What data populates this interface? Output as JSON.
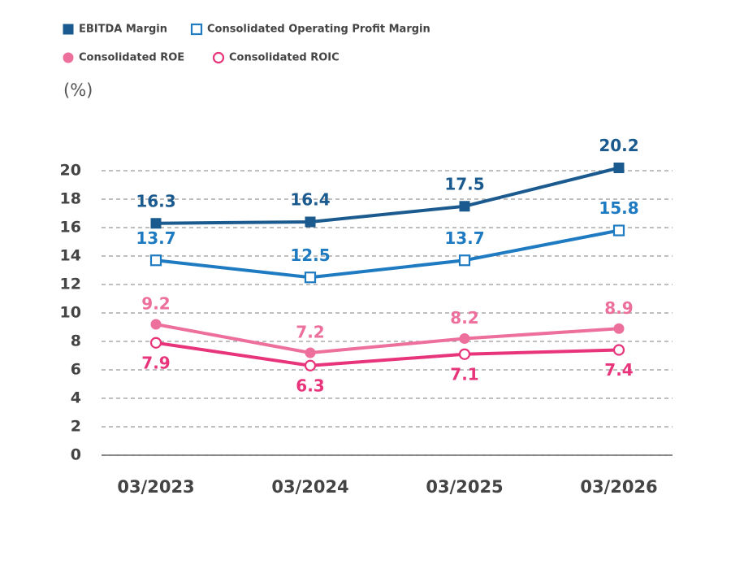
{
  "chart_data": {
    "type": "line",
    "y_axis_label": "(%)",
    "categories": [
      "03/2023",
      "03/2024",
      "03/2025",
      "03/2026"
    ],
    "ylim": [
      0,
      20
    ],
    "yticks": [
      0,
      2,
      4,
      6,
      8,
      10,
      12,
      14,
      16,
      18,
      20
    ],
    "grid": true,
    "legend": "top-left",
    "series": [
      {
        "name": "EBITDA Margin",
        "color": "#1b5a8e",
        "marker": "square",
        "values": [
          16.3,
          16.4,
          17.5,
          20.2
        ]
      },
      {
        "name": "Consolidated Operating Profit Margin",
        "color": "#1f7bc1",
        "marker": "square-open",
        "values": [
          13.7,
          12.5,
          13.7,
          15.8
        ]
      },
      {
        "name": "Consolidated ROE",
        "color": "#ec6f9c",
        "marker": "circle",
        "values": [
          9.2,
          7.2,
          8.2,
          8.9
        ]
      },
      {
        "name": "Consolidated ROIC",
        "color": "#e8347a",
        "marker": "circle-open",
        "values": [
          7.9,
          6.3,
          7.1,
          7.4
        ]
      }
    ]
  }
}
